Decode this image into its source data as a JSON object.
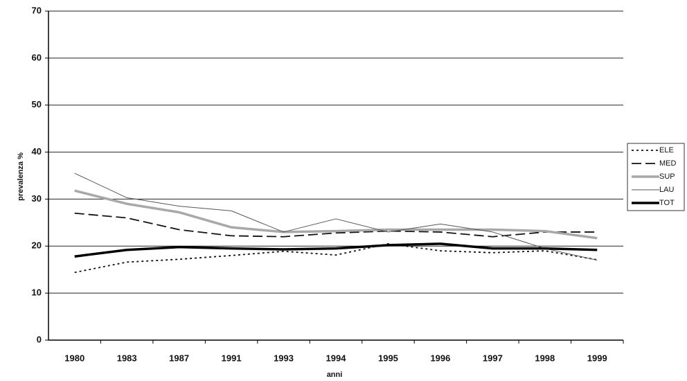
{
  "chart_data": {
    "type": "line",
    "x_label": "anni",
    "y_label": "prevalenza %",
    "categories": [
      "1980",
      "1983",
      "1987",
      "1991",
      "1993",
      "1994",
      "1995",
      "1996",
      "1997",
      "1998",
      "1999"
    ],
    "series": [
      {
        "name": "ELE",
        "color": "#111111",
        "dash": "3,4",
        "width": 1.8,
        "values": [
          14.4,
          16.6,
          17.2,
          18,
          18.9,
          18.1,
          20.5,
          19,
          18.6,
          19,
          17.1
        ]
      },
      {
        "name": "MED",
        "color": "#111111",
        "dash": "14,6",
        "width": 1.8,
        "values": [
          27,
          26,
          23.5,
          22.2,
          22,
          22.8,
          23.2,
          23,
          22,
          23,
          23
        ]
      },
      {
        "name": "SUP",
        "color": "#a8a8a8",
        "dash": "none",
        "width": 3.5,
        "values": [
          31.8,
          29,
          27.2,
          24,
          23,
          23.2,
          23.5,
          23.5,
          23.5,
          23.2,
          21.7
        ]
      },
      {
        "name": "LAU",
        "color": "#555555",
        "dash": "none",
        "width": 1,
        "values": [
          35.5,
          30.3,
          28.5,
          27.5,
          23,
          25.8,
          23,
          24.7,
          23,
          19.5,
          17
        ]
      },
      {
        "name": "TOT",
        "color": "#000000",
        "dash": "none",
        "width": 3.5,
        "values": [
          17.8,
          19.2,
          19.8,
          19.5,
          19.3,
          19.5,
          20.2,
          20.5,
          19.5,
          19.5,
          19.2
        ]
      }
    ],
    "ylim": [
      0,
      70
    ],
    "yticks": [
      0,
      10,
      20,
      30,
      40,
      50,
      60,
      70
    ],
    "grid": true,
    "legend": "right"
  }
}
